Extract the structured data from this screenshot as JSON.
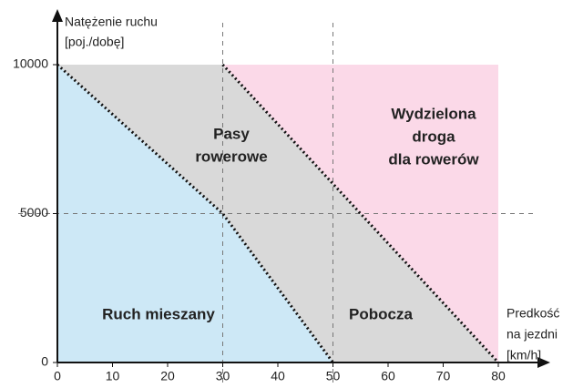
{
  "chart_data": {
    "type": "region",
    "y_axis_label": [
      "Natężenie ruchu",
      "[poj./dobę]"
    ],
    "x_axis_label": [
      "Predkość",
      "na jezdni",
      "[km/h]"
    ],
    "xlim": [
      0,
      80
    ],
    "xticks": [
      0,
      10,
      20,
      30,
      40,
      50,
      60,
      70,
      80
    ],
    "ylim": [
      0,
      10000
    ],
    "yticks": [
      0,
      5000,
      10000
    ],
    "guides_x": [
      30,
      50
    ],
    "guides_y": [
      5000
    ],
    "boundaries": [
      {
        "x": [
          0,
          30,
          50
        ],
        "y": [
          10000,
          5000,
          0
        ]
      },
      {
        "x": [
          30,
          80
        ],
        "y": [
          10000,
          0
        ]
      }
    ],
    "regions": [
      {
        "label": [
          "Ruch mieszany"
        ],
        "color": "#cde8f6"
      },
      {
        "label": [
          "Pasy",
          "rowerowe"
        ],
        "color": "#d9d9d9"
      },
      {
        "label": [
          "Pobocza"
        ],
        "color": "#d9d9d9"
      },
      {
        "label": [
          "Wydzielona",
          "droga",
          "dla rowerów"
        ],
        "color": "#fbd9e8"
      }
    ]
  }
}
